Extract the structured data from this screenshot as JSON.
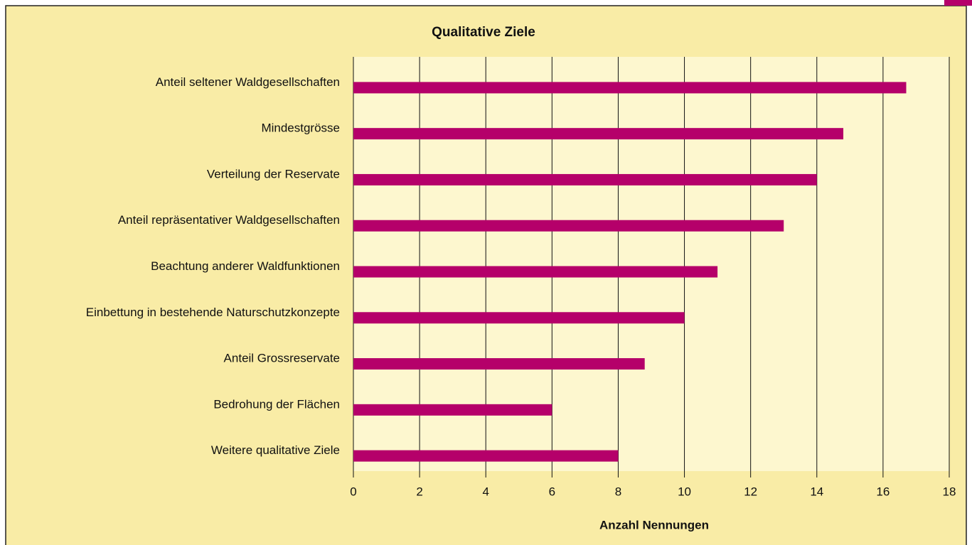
{
  "chart_data": {
    "type": "barh",
    "title": "Qualitative Ziele",
    "categories": [
      "Anteil seltener Waldgesellschaften",
      "Mindestgrösse",
      "Verteilung der Reservate",
      "Anteil repräsentativer Waldgesellschaften",
      "Beachtung anderer Waldfunktionen",
      "Einbettung in bestehende Naturschutzkonzepte",
      "Anteil Grossreservate",
      "Bedrohung der Flächen",
      "Weitere qualitative Ziele"
    ],
    "values": [
      16.7,
      14.8,
      14,
      13,
      11,
      10,
      8.8,
      6,
      8
    ],
    "color": "#b5006a",
    "xlabel": "Anzahl Nennungen",
    "xlim": [
      0,
      18
    ],
    "xticks": [
      0,
      2,
      4,
      6,
      8,
      10,
      12,
      14,
      16,
      18
    ],
    "grid": true
  }
}
